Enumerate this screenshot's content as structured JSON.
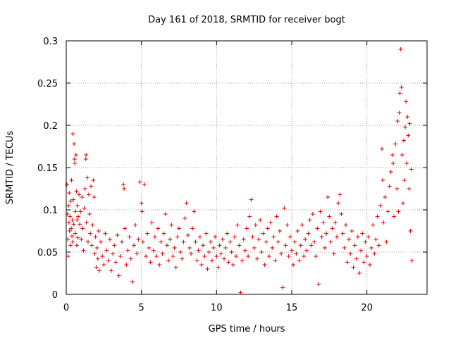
{
  "chart_data": {
    "type": "scatter",
    "title": "Day 161 of 2018, SRMTID for receiver bogt",
    "xlabel": "GPS time / hours",
    "ylabel": "SRMTID / TECUs",
    "xlim": [
      0,
      24
    ],
    "ylim": [
      0,
      0.3
    ],
    "xticks": [
      0,
      5,
      10,
      15,
      20
    ],
    "xtick_labels": [
      "0",
      "5",
      "10",
      "15",
      "20"
    ],
    "yticks": [
      0,
      0.05,
      0.1,
      0.15,
      0.2,
      0.25,
      0.3
    ],
    "ytick_labels": [
      "0",
      "0.05",
      "0.1",
      "0.15",
      "0.2",
      "0.25",
      "0.3"
    ],
    "grid": true,
    "marker": "+",
    "color": "#e00000",
    "series": [
      {
        "name": "SRMTID",
        "points": [
          [
            0.05,
            0.13
          ],
          [
            0.08,
            0.095
          ],
          [
            0.1,
            0.065
          ],
          [
            0.12,
            0.045
          ],
          [
            0.15,
            0.105
          ],
          [
            0.18,
            0.085
          ],
          [
            0.2,
            0.12
          ],
          [
            0.22,
            0.075
          ],
          [
            0.25,
            0.092
          ],
          [
            0.28,
            0.058
          ],
          [
            0.3,
            0.11
          ],
          [
            0.33,
            0.078
          ],
          [
            0.35,
            0.135
          ],
          [
            0.38,
            0.069
          ],
          [
            0.4,
            0.088
          ],
          [
            0.42,
            0.062
          ],
          [
            0.45,
            0.19
          ],
          [
            0.47,
            0.112
          ],
          [
            0.5,
            0.083
          ],
          [
            0.52,
            0.178
          ],
          [
            0.55,
            0.16
          ],
          [
            0.57,
            0.155
          ],
          [
            0.6,
            0.072
          ],
          [
            0.62,
            0.098
          ],
          [
            0.65,
            0.165
          ],
          [
            0.68,
            0.122
          ],
          [
            0.7,
            0.058
          ],
          [
            0.72,
            0.088
          ],
          [
            0.75,
            0.105
          ],
          [
            0.78,
            0.067
          ],
          [
            0.8,
            0.092
          ],
          [
            0.85,
            0.118
          ],
          [
            0.9,
            0.083
          ],
          [
            0.95,
            0.098
          ],
          [
            1.0,
            0.065
          ],
          [
            1.05,
            0.115
          ],
          [
            1.1,
            0.078
          ],
          [
            1.15,
            0.052
          ],
          [
            1.2,
            0.102
          ],
          [
            1.25,
            0.125
          ],
          [
            1.3,
            0.16
          ],
          [
            1.32,
            0.165
          ],
          [
            1.35,
            0.085
          ],
          [
            1.4,
            0.138
          ],
          [
            1.45,
            0.062
          ],
          [
            1.5,
            0.118
          ],
          [
            1.55,
            0.095
          ],
          [
            1.6,
            0.072
          ],
          [
            1.65,
            0.128
          ],
          [
            1.7,
            0.058
          ],
          [
            1.75,
            0.082
          ],
          [
            1.8,
            0.135
          ],
          [
            1.85,
            0.115
          ],
          [
            1.9,
            0.048
          ],
          [
            1.95,
            0.068
          ],
          [
            2.0,
            0.032
          ],
          [
            2.05,
            0.055
          ],
          [
            2.1,
            0.042
          ],
          [
            2.15,
            0.075
          ],
          [
            2.2,
            0.028
          ],
          [
            2.3,
            0.062
          ],
          [
            2.4,
            0.045
          ],
          [
            2.5,
            0.035
          ],
          [
            2.6,
            0.072
          ],
          [
            2.7,
            0.052
          ],
          [
            2.8,
            0.04
          ],
          [
            2.9,
            0.065
          ],
          [
            3.0,
            0.028
          ],
          [
            3.1,
            0.048
          ],
          [
            3.2,
            0.058
          ],
          [
            3.3,
            0.038
          ],
          [
            3.4,
            0.07
          ],
          [
            3.5,
            0.022
          ],
          [
            3.6,
            0.045
          ],
          [
            3.7,
            0.062
          ],
          [
            3.8,
            0.13
          ],
          [
            3.85,
            0.125
          ],
          [
            3.9,
            0.078
          ],
          [
            4.0,
            0.035
          ],
          [
            4.1,
            0.052
          ],
          [
            4.2,
            0.068
          ],
          [
            4.3,
            0.042
          ],
          [
            4.4,
            0.015
          ],
          [
            4.5,
            0.058
          ],
          [
            4.6,
            0.082
          ],
          [
            4.7,
            0.048
          ],
          [
            4.8,
            0.065
          ],
          [
            4.9,
            0.133
          ],
          [
            5.0,
            0.108
          ],
          [
            5.05,
            0.098
          ],
          [
            5.1,
            0.062
          ],
          [
            5.2,
            0.13
          ],
          [
            5.3,
            0.045
          ],
          [
            5.4,
            0.072
          ],
          [
            5.5,
            0.055
          ],
          [
            5.6,
            0.038
          ],
          [
            5.7,
            0.085
          ],
          [
            5.8,
            0.052
          ],
          [
            5.9,
            0.068
          ],
          [
            6.0,
            0.045
          ],
          [
            6.1,
            0.078
          ],
          [
            6.2,
            0.035
          ],
          [
            6.3,
            0.062
          ],
          [
            6.4,
            0.048
          ],
          [
            6.5,
            0.072
          ],
          [
            6.6,
            0.095
          ],
          [
            6.7,
            0.058
          ],
          [
            6.8,
            0.04
          ],
          [
            6.9,
            0.065
          ],
          [
            7.0,
            0.082
          ],
          [
            7.1,
            0.045
          ],
          [
            7.2,
            0.055
          ],
          [
            7.3,
            0.032
          ],
          [
            7.4,
            0.068
          ],
          [
            7.5,
            0.078
          ],
          [
            7.6,
            0.05
          ],
          [
            7.7,
            0.042
          ],
          [
            7.8,
            0.062
          ],
          [
            7.9,
            0.09
          ],
          [
            8.0,
            0.108
          ],
          [
            8.1,
            0.07
          ],
          [
            8.2,
            0.055
          ],
          [
            8.3,
            0.048
          ],
          [
            8.4,
            0.078
          ],
          [
            8.5,
            0.098
          ],
          [
            8.6,
            0.062
          ],
          [
            8.7,
            0.04
          ],
          [
            8.8,
            0.052
          ],
          [
            8.9,
            0.068
          ],
          [
            9.0,
            0.035
          ],
          [
            9.1,
            0.058
          ],
          [
            9.2,
            0.045
          ],
          [
            9.3,
            0.072
          ],
          [
            9.4,
            0.03
          ],
          [
            9.5,
            0.05
          ],
          [
            9.6,
            0.062
          ],
          [
            9.7,
            0.04
          ],
          [
            9.8,
            0.055
          ],
          [
            9.9,
            0.068
          ],
          [
            10.0,
            0.045
          ],
          [
            10.1,
            0.032
          ],
          [
            10.2,
            0.058
          ],
          [
            10.3,
            0.048
          ],
          [
            10.4,
            0.065
          ],
          [
            10.5,
            0.042
          ],
          [
            10.6,
            0.055
          ],
          [
            10.7,
            0.072
          ],
          [
            10.8,
            0.038
          ],
          [
            10.9,
            0.062
          ],
          [
            11.0,
            0.05
          ],
          [
            11.1,
            0.035
          ],
          [
            11.2,
            0.068
          ],
          [
            11.3,
            0.045
          ],
          [
            11.4,
            0.082
          ],
          [
            11.5,
            0.058
          ],
          [
            11.6,
            0.002
          ],
          [
            11.7,
            0.04
          ],
          [
            11.8,
            0.065
          ],
          [
            11.9,
            0.052
          ],
          [
            12.0,
            0.078
          ],
          [
            12.1,
            0.045
          ],
          [
            12.2,
            0.092
          ],
          [
            12.3,
            0.112
          ],
          [
            12.4,
            0.068
          ],
          [
            12.5,
            0.055
          ],
          [
            12.6,
            0.082
          ],
          [
            12.7,
            0.042
          ],
          [
            12.8,
            0.065
          ],
          [
            12.9,
            0.088
          ],
          [
            13.0,
            0.05
          ],
          [
            13.1,
            0.072
          ],
          [
            13.2,
            0.035
          ],
          [
            13.3,
            0.062
          ],
          [
            13.4,
            0.078
          ],
          [
            13.5,
            0.045
          ],
          [
            13.6,
            0.085
          ],
          [
            13.7,
            0.055
          ],
          [
            13.8,
            0.068
          ],
          [
            13.9,
            0.04
          ],
          [
            14.0,
            0.092
          ],
          [
            14.1,
            0.062
          ],
          [
            14.2,
            0.075
          ],
          [
            14.3,
            0.048
          ],
          [
            14.4,
            0.008
          ],
          [
            14.5,
            0.102
          ],
          [
            14.6,
            0.058
          ],
          [
            14.7,
            0.082
          ],
          [
            14.8,
            0.045
          ],
          [
            14.9,
            0.068
          ],
          [
            15.0,
            0.052
          ],
          [
            15.1,
            0.035
          ],
          [
            15.2,
            0.062
          ],
          [
            15.3,
            0.048
          ],
          [
            15.4,
            0.075
          ],
          [
            15.5,
            0.04
          ],
          [
            15.6,
            0.058
          ],
          [
            15.7,
            0.082
          ],
          [
            15.8,
            0.045
          ],
          [
            15.9,
            0.065
          ],
          [
            16.0,
            0.052
          ],
          [
            16.1,
            0.072
          ],
          [
            16.2,
            0.088
          ],
          [
            16.3,
            0.058
          ],
          [
            16.4,
            0.095
          ],
          [
            16.5,
            0.062
          ],
          [
            16.6,
            0.045
          ],
          [
            16.7,
            0.078
          ],
          [
            16.8,
            0.012
          ],
          [
            16.9,
            0.098
          ],
          [
            17.0,
            0.068
          ],
          [
            17.1,
            0.085
          ],
          [
            17.2,
            0.055
          ],
          [
            17.3,
            0.072
          ],
          [
            17.4,
            0.115
          ],
          [
            17.5,
            0.092
          ],
          [
            17.6,
            0.062
          ],
          [
            17.7,
            0.078
          ],
          [
            17.8,
            0.048
          ],
          [
            17.9,
            0.085
          ],
          [
            18.0,
            0.068
          ],
          [
            18.1,
            0.108
          ],
          [
            18.2,
            0.118
          ],
          [
            18.3,
            0.095
          ],
          [
            18.4,
            0.072
          ],
          [
            18.5,
            0.055
          ],
          [
            18.6,
            0.082
          ],
          [
            18.7,
            0.038
          ],
          [
            18.8,
            0.065
          ],
          [
            18.9,
            0.048
          ],
          [
            19.0,
            0.075
          ],
          [
            19.1,
            0.032
          ],
          [
            19.2,
            0.058
          ],
          [
            19.3,
            0.042
          ],
          [
            19.4,
            0.068
          ],
          [
            19.5,
            0.025
          ],
          [
            19.6,
            0.052
          ],
          [
            19.7,
            0.072
          ],
          [
            19.8,
            0.038
          ],
          [
            19.9,
            0.062
          ],
          [
            20.0,
            0.045
          ],
          [
            20.1,
            0.068
          ],
          [
            20.2,
            0.035
          ],
          [
            20.3,
            0.055
          ],
          [
            20.4,
            0.082
          ],
          [
            20.5,
            0.048
          ],
          [
            20.6,
            0.065
          ],
          [
            20.7,
            0.092
          ],
          [
            20.8,
            0.058
          ],
          [
            20.9,
            0.105
          ],
          [
            21.0,
            0.172
          ],
          [
            21.05,
            0.135
          ],
          [
            21.1,
            0.085
          ],
          [
            21.2,
            0.115
          ],
          [
            21.3,
            0.062
          ],
          [
            21.4,
            0.098
          ],
          [
            21.5,
            0.128
          ],
          [
            21.6,
            0.145
          ],
          [
            21.7,
            0.165
          ],
          [
            21.75,
            0.155
          ],
          [
            21.8,
            0.092
          ],
          [
            21.9,
            0.178
          ],
          [
            22.0,
            0.125
          ],
          [
            22.05,
            0.205
          ],
          [
            22.1,
            0.098
          ],
          [
            22.15,
            0.215
          ],
          [
            22.2,
            0.238
          ],
          [
            22.25,
            0.29
          ],
          [
            22.3,
            0.245
          ],
          [
            22.35,
            0.165
          ],
          [
            22.4,
            0.108
          ],
          [
            22.45,
            0.182
          ],
          [
            22.5,
            0.135
          ],
          [
            22.55,
            0.198
          ],
          [
            22.6,
            0.228
          ],
          [
            22.65,
            0.155
          ],
          [
            22.7,
            0.21
          ],
          [
            22.75,
            0.188
          ],
          [
            22.8,
            0.125
          ],
          [
            22.85,
            0.202
          ],
          [
            22.9,
            0.075
          ],
          [
            22.95,
            0.148
          ],
          [
            23.0,
            0.04
          ]
        ]
      }
    ]
  }
}
